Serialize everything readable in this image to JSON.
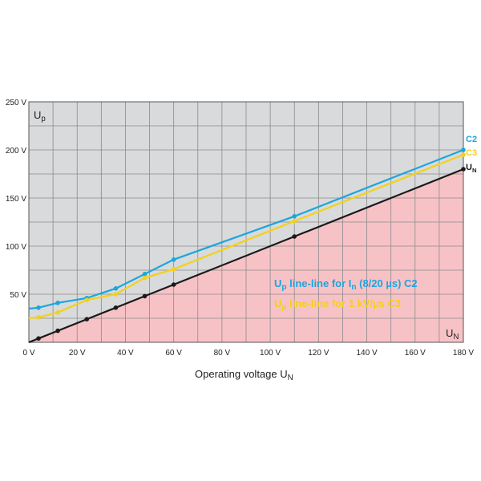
{
  "chart_data": {
    "type": "line",
    "xlabel": "Operating voltage U",
    "xlabel_sub": "N",
    "ylabel": "U",
    "ylabel_sub": "p",
    "corner_label": "U",
    "corner_label_sub": "N",
    "xlim": [
      0,
      180
    ],
    "ylim": [
      0,
      250
    ],
    "x_ticks": [
      "0 V",
      "20 V",
      "40 V",
      "60 V",
      "80 V",
      "100 V",
      "120 V",
      "140 V",
      "160 V",
      "180 V"
    ],
    "y_ticks": [
      "50 V",
      "100 V",
      "150 V",
      "200 V",
      "250 V"
    ],
    "grid": true,
    "series": [
      {
        "name": "C2",
        "color": "#1ba6dd",
        "x": [
          0,
          4,
          12,
          24,
          36,
          48,
          60,
          110,
          180
        ],
        "y": [
          35,
          36,
          41,
          46,
          56,
          71,
          86,
          131,
          200
        ]
      },
      {
        "name": "C3",
        "color": "#f2d11b",
        "x": [
          0,
          4,
          12,
          24,
          36,
          48,
          60,
          110,
          180
        ],
        "y": [
          25,
          26,
          31,
          44,
          50,
          67,
          76,
          126,
          195
        ]
      },
      {
        "name": "U",
        "name_sub": "N",
        "color": "#1a1a1a",
        "x": [
          0,
          4,
          12,
          24,
          36,
          48,
          60,
          110,
          180
        ],
        "y": [
          0,
          4,
          12,
          24,
          36,
          48,
          60,
          110,
          180
        ]
      }
    ],
    "legend": {
      "placement": "bottom-right",
      "entries": [
        {
          "prefix": "U",
          "prefix_sub": "p",
          "text_a": " line-line for I",
          "text_a_sub": "n",
          "text_b": " (8/20 µs) C2",
          "color": "#1ba6dd"
        },
        {
          "prefix": "U",
          "prefix_sub": "p",
          "text_a": " line-line for 1 kV/µs C3",
          "text_a_sub": "",
          "text_b": "",
          "color": "#f2d11b"
        }
      ]
    },
    "colors": {
      "upper_region": "#d9dadb",
      "lower_region": "#f7c2c6",
      "grid": "#8a8a8a"
    }
  }
}
